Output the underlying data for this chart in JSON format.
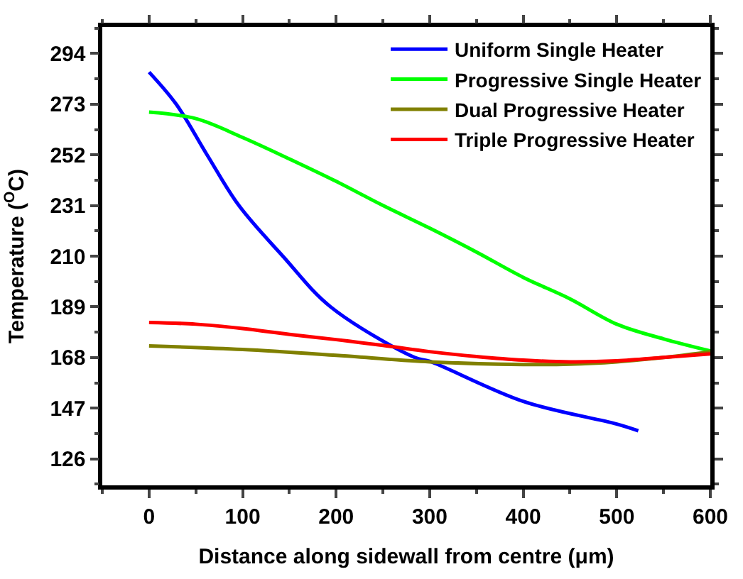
{
  "chart_data": {
    "type": "line",
    "xlabel": "Distance along sidewall from centre (μm)",
    "ylabel": "Temperature ($^{O}$C)",
    "xlim": [
      -50,
      600
    ],
    "xticks": [
      0,
      100,
      200,
      300,
      400,
      500,
      600
    ],
    "ylim": [
      115,
      305
    ],
    "yticks": [
      126,
      147,
      168,
      189,
      210,
      231,
      252,
      273,
      294
    ],
    "grid": false,
    "legend": "top right",
    "marker": "none",
    "line_style": "solid",
    "series": [
      {
        "name": "Uniform Single Heater",
        "color": "#0000ff",
        "x": [
          0,
          29,
          62,
          96,
          143,
          194,
          284,
          300,
          400,
          500,
          523
        ],
        "values": [
          286.3,
          273,
          252,
          231,
          210,
          189,
          168,
          166.4,
          149.8,
          140.4,
          137.6
        ]
      },
      {
        "name": "Progressive Single Heater",
        "color": "#00ff00",
        "x": [
          0,
          50,
          100,
          150,
          200,
          250,
          300,
          350,
          400,
          450,
          500,
          550,
          600
        ],
        "values": [
          269.7,
          267,
          259.2,
          250.3,
          241,
          231,
          221.6,
          211.7,
          201.2,
          192.3,
          181.8,
          175.7,
          170.7
        ]
      },
      {
        "name": "Dual Progressive Heater",
        "color": "#808000",
        "x": [
          0,
          100,
          200,
          300,
          400,
          450,
          500,
          550,
          600
        ],
        "values": [
          172.8,
          171.3,
          168.9,
          166.2,
          165.1,
          165.2,
          166.2,
          168,
          170.4
        ]
      },
      {
        "name": "Triple Progressive Heater",
        "color": "#ff0000",
        "x": [
          0,
          50,
          100,
          150,
          200,
          250,
          300,
          350,
          400,
          450,
          500,
          550,
          600
        ],
        "values": [
          182.5,
          181.8,
          180,
          177.6,
          175.4,
          173,
          170.4,
          168.4,
          166.9,
          166.2,
          166.6,
          168,
          169.5
        ]
      }
    ]
  }
}
